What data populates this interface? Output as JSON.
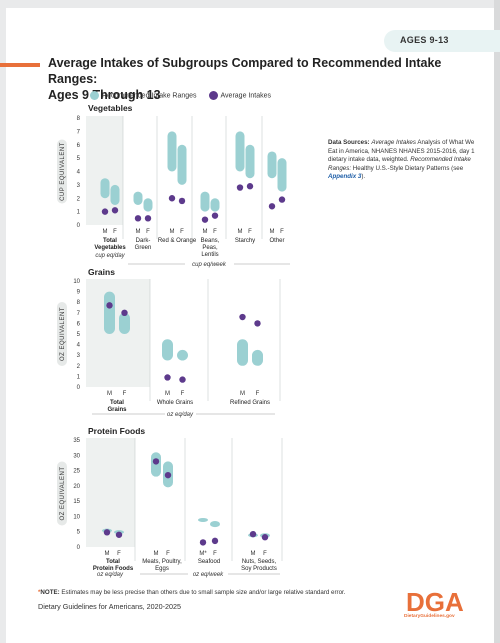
{
  "header": {
    "age_tab": "AGES 9-13",
    "title_line1": "Average Intakes of Subgroups Compared to Recommended Intake Ranges:",
    "title_line2": "Ages 9 Through 13"
  },
  "legend": {
    "recommended": "Recommended Intake Ranges",
    "average": "Average Intakes"
  },
  "colors": {
    "recommended": "#9bd0d2",
    "average": "#5d3a8c",
    "shade": "#eef1f0",
    "accent": "#e8703a"
  },
  "data_sources": {
    "label": "Data Sources:",
    "avg_label": "Average Intakes",
    "avg_text": "Analysis of What We Eat in America, NHANES NHANES 2015-2016, day 1 dietary intake data, weighted.",
    "rec_label": "Recommended Intake Ranges:",
    "rec_text": "Healthy U.S.-Style Dietary Patterns (see",
    "appendix": "Appendix 3",
    "close": ")."
  },
  "note": {
    "star": "*",
    "label": "NOTE:",
    "text": "Estimates may be less precise than others due to small sample size and/or large relative standard error."
  },
  "footer": {
    "text": "Dietary Guidelines for Americans, 2020-2025",
    "logo_letters": "DGA",
    "logo_url": "DietaryGuidelines.gov"
  },
  "chart_data": [
    {
      "type": "range-dot",
      "title": "Vegetables",
      "ylabel": "CUP EQUIVALENT",
      "ylim": [
        0,
        8
      ],
      "yticks": [
        0,
        1,
        2,
        3,
        4,
        5,
        6,
        7,
        8
      ],
      "shaded_group": 0,
      "unit_labels": [
        "cup eq/day",
        "cup eq/week"
      ],
      "groups": [
        {
          "name": "Total Vegetables",
          "bold": true,
          "sexes": [
            {
              "sex": "M",
              "range": [
                2.0,
                3.5
              ],
              "avg": 1.0
            },
            {
              "sex": "F",
              "range": [
                1.5,
                3.0
              ],
              "avg": 1.1
            }
          ]
        },
        {
          "name": "Dark-Green",
          "bold": false,
          "sexes": [
            {
              "sex": "M",
              "range": [
                1.5,
                2.5
              ],
              "avg": 0.5
            },
            {
              "sex": "F",
              "range": [
                1.0,
                2.0
              ],
              "avg": 0.5
            }
          ]
        },
        {
          "name": "Red & Orange",
          "bold": false,
          "sexes": [
            {
              "sex": "M",
              "range": [
                4.0,
                7.0
              ],
              "avg": 2.0
            },
            {
              "sex": "F",
              "range": [
                3.0,
                6.0
              ],
              "avg": 1.8
            }
          ]
        },
        {
          "name": "Beans, Peas, Lentils",
          "bold": false,
          "sexes": [
            {
              "sex": "M",
              "range": [
                1.0,
                2.5
              ],
              "avg": 0.4
            },
            {
              "sex": "F",
              "range": [
                1.0,
                2.0
              ],
              "avg": 0.7
            }
          ]
        },
        {
          "name": "Starchy",
          "bold": false,
          "sexes": [
            {
              "sex": "M",
              "range": [
                4.0,
                7.0
              ],
              "avg": 2.8
            },
            {
              "sex": "F",
              "range": [
                3.5,
                6.0
              ],
              "avg": 2.9
            }
          ]
        },
        {
          "name": "Other",
          "bold": false,
          "sexes": [
            {
              "sex": "M",
              "range": [
                3.5,
                5.5
              ],
              "avg": 1.4
            },
            {
              "sex": "F",
              "range": [
                2.5,
                5.0
              ],
              "avg": 1.9
            }
          ]
        }
      ]
    },
    {
      "type": "range-dot",
      "title": "Grains",
      "ylabel": "OZ EQUIVALENT",
      "ylim": [
        0,
        10
      ],
      "yticks": [
        0,
        1,
        2,
        3,
        4,
        5,
        6,
        7,
        8,
        9,
        10
      ],
      "shaded_group": 0,
      "unit_labels": [
        "oz eq/day"
      ],
      "groups": [
        {
          "name": "Total Grains",
          "bold": true,
          "sexes": [
            {
              "sex": "M",
              "range": [
                5.0,
                9.0
              ],
              "avg": 7.7
            },
            {
              "sex": "F",
              "range": [
                5.0,
                7.0
              ],
              "avg": 7.0
            }
          ]
        },
        {
          "name": "Whole Grains",
          "bold": false,
          "sexes": [
            {
              "sex": "M",
              "range": [
                2.5,
                4.5
              ],
              "avg": 0.9
            },
            {
              "sex": "F",
              "range": [
                2.5,
                3.5
              ],
              "avg": 0.7
            }
          ]
        },
        {
          "name": "Refined Grains",
          "bold": false,
          "sexes": [
            {
              "sex": "M",
              "range": [
                2.0,
                4.5
              ],
              "avg": 6.6
            },
            {
              "sex": "F",
              "range": [
                2.0,
                3.5
              ],
              "avg": 6.0
            }
          ]
        }
      ]
    },
    {
      "type": "range-dot",
      "title": "Protein Foods",
      "ylabel": "OZ EQUIVALENT",
      "ylim": [
        0,
        35
      ],
      "yticks": [
        0,
        5,
        10,
        15,
        20,
        25,
        30,
        35
      ],
      "shaded_group": 0,
      "unit_labels": [
        "oz eq/day",
        "oz eq/week"
      ],
      "groups": [
        {
          "name": "Total Protein Foods",
          "bold": true,
          "sexes": [
            {
              "sex": "M",
              "range": [
                5.0,
                6.0
              ],
              "avg": 4.8
            },
            {
              "sex": "F",
              "range": [
                4.5,
                5.5
              ],
              "avg": 4.0
            }
          ]
        },
        {
          "name": "Meats, Poultry, Eggs",
          "bold": false,
          "sexes": [
            {
              "sex": "M",
              "range": [
                23.0,
                31.0
              ],
              "avg": 28.0
            },
            {
              "sex": "F",
              "range": [
                19.5,
                28.0
              ],
              "avg": 23.5
            }
          ]
        },
        {
          "name": "Seafood",
          "bold": false,
          "sexes": [
            {
              "sex": "M*",
              "range": [
                8.5,
                9.5
              ],
              "avg": 1.5
            },
            {
              "sex": "F",
              "range": [
                6.5,
                8.5
              ],
              "avg": 2.0
            }
          ]
        },
        {
          "name": "Nuts, Seeds, Soy Products",
          "bold": false,
          "sexes": [
            {
              "sex": "M",
              "range": [
                3.5,
                4.5
              ],
              "avg": 4.2
            },
            {
              "sex": "F",
              "range": [
                3.0,
                4.5
              ],
              "avg": 3.2
            }
          ]
        }
      ]
    }
  ]
}
